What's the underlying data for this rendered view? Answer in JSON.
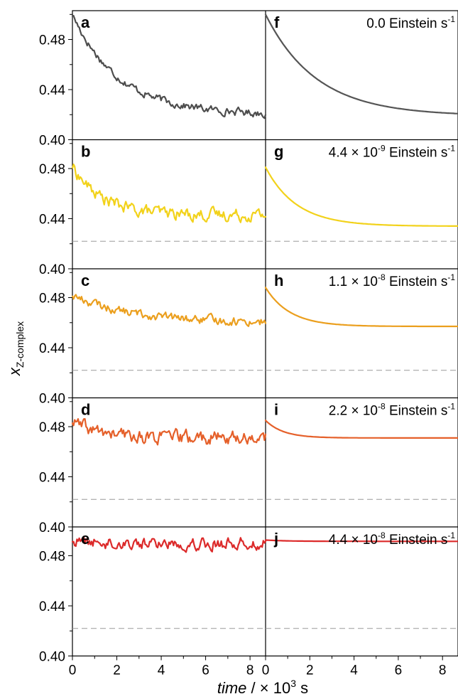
{
  "figure": {
    "ylabel_main": "x",
    "ylabel_sub": "Z-complex",
    "xlabel_var": "time",
    "xlabel_rest": " / × 10",
    "xlabel_sup": "3",
    "xlabel_unit": " s"
  },
  "chart_data": {
    "type": "line",
    "xlim": [
      0,
      8.7
    ],
    "ylim": [
      0.4,
      0.503
    ],
    "x_ticks": [
      0,
      2,
      4,
      6,
      8
    ],
    "x_ticklabels": [
      "0",
      "2",
      "4",
      "6",
      "8"
    ],
    "y_ticks": [
      0.4,
      0.44,
      0.48
    ],
    "y_ticklabels": [
      "0.40",
      "0.44",
      "0.48"
    ],
    "reference_line_y": 0.422,
    "panels": [
      {
        "row": 0,
        "letter": "a",
        "type": "experimental",
        "color": "#4d4d4d",
        "start": 0.5,
        "end": 0.42,
        "tau": 2.1,
        "noise": 0.0025,
        "ref": false
      },
      {
        "row": 1,
        "letter": "b",
        "type": "experimental",
        "color": "#f2d21b",
        "start": 0.482,
        "end": 0.443,
        "tau": 1.3,
        "noise": 0.004,
        "ref": true
      },
      {
        "row": 2,
        "letter": "c",
        "type": "experimental",
        "color": "#eb9f1e",
        "start": 0.482,
        "end": 0.46,
        "tau": 2.6,
        "noise": 0.0028,
        "ref": true
      },
      {
        "row": 3,
        "letter": "d",
        "type": "experimental",
        "color": "#e5602a",
        "start": 0.484,
        "end": 0.471,
        "tau": 1.2,
        "noise": 0.0045,
        "ref": true
      },
      {
        "row": 4,
        "letter": "e",
        "type": "experimental",
        "color": "#dc2a2a",
        "start": 0.492,
        "end": 0.49,
        "tau": 1.0,
        "noise": 0.004,
        "ref": true
      },
      {
        "row": 0,
        "letter": "f",
        "type": "model",
        "color": "#555555",
        "start": 0.5,
        "end": 0.419,
        "tau": 2.3,
        "ref": false,
        "intensity": "0.0",
        "intensity_exp": "",
        "unit": "Einstein s",
        "unit_sup": "-1"
      },
      {
        "row": 1,
        "letter": "g",
        "type": "model",
        "color": "#f2d21b",
        "start": 0.481,
        "end": 0.434,
        "tau": 1.4,
        "ref": true,
        "intensity": "4.4 × 10",
        "intensity_exp": "-9",
        "unit": "Einstein s",
        "unit_sup": "-1"
      },
      {
        "row": 2,
        "letter": "h",
        "type": "model",
        "color": "#eb9f1e",
        "start": 0.488,
        "end": 0.457,
        "tau": 1.1,
        "ref": true,
        "intensity": "1.1 × 10",
        "intensity_exp": "-8",
        "unit": "Einstein s",
        "unit_sup": "-1"
      },
      {
        "row": 3,
        "letter": "i",
        "type": "model",
        "color": "#e5602a",
        "start": 0.485,
        "end": 0.471,
        "tau": 0.8,
        "ref": true,
        "intensity": "2.2 × 10",
        "intensity_exp": "-8",
        "unit": "Einstein s",
        "unit_sup": "-1"
      },
      {
        "row": 4,
        "letter": "j",
        "type": "model",
        "color": "#dc2a2a",
        "start": 0.4925,
        "end": 0.4915,
        "tau": 1.0,
        "ref": true,
        "intensity": "4.4 × 10",
        "intensity_exp": "-8",
        "unit": "Einstein s",
        "unit_sup": "-1"
      }
    ]
  }
}
